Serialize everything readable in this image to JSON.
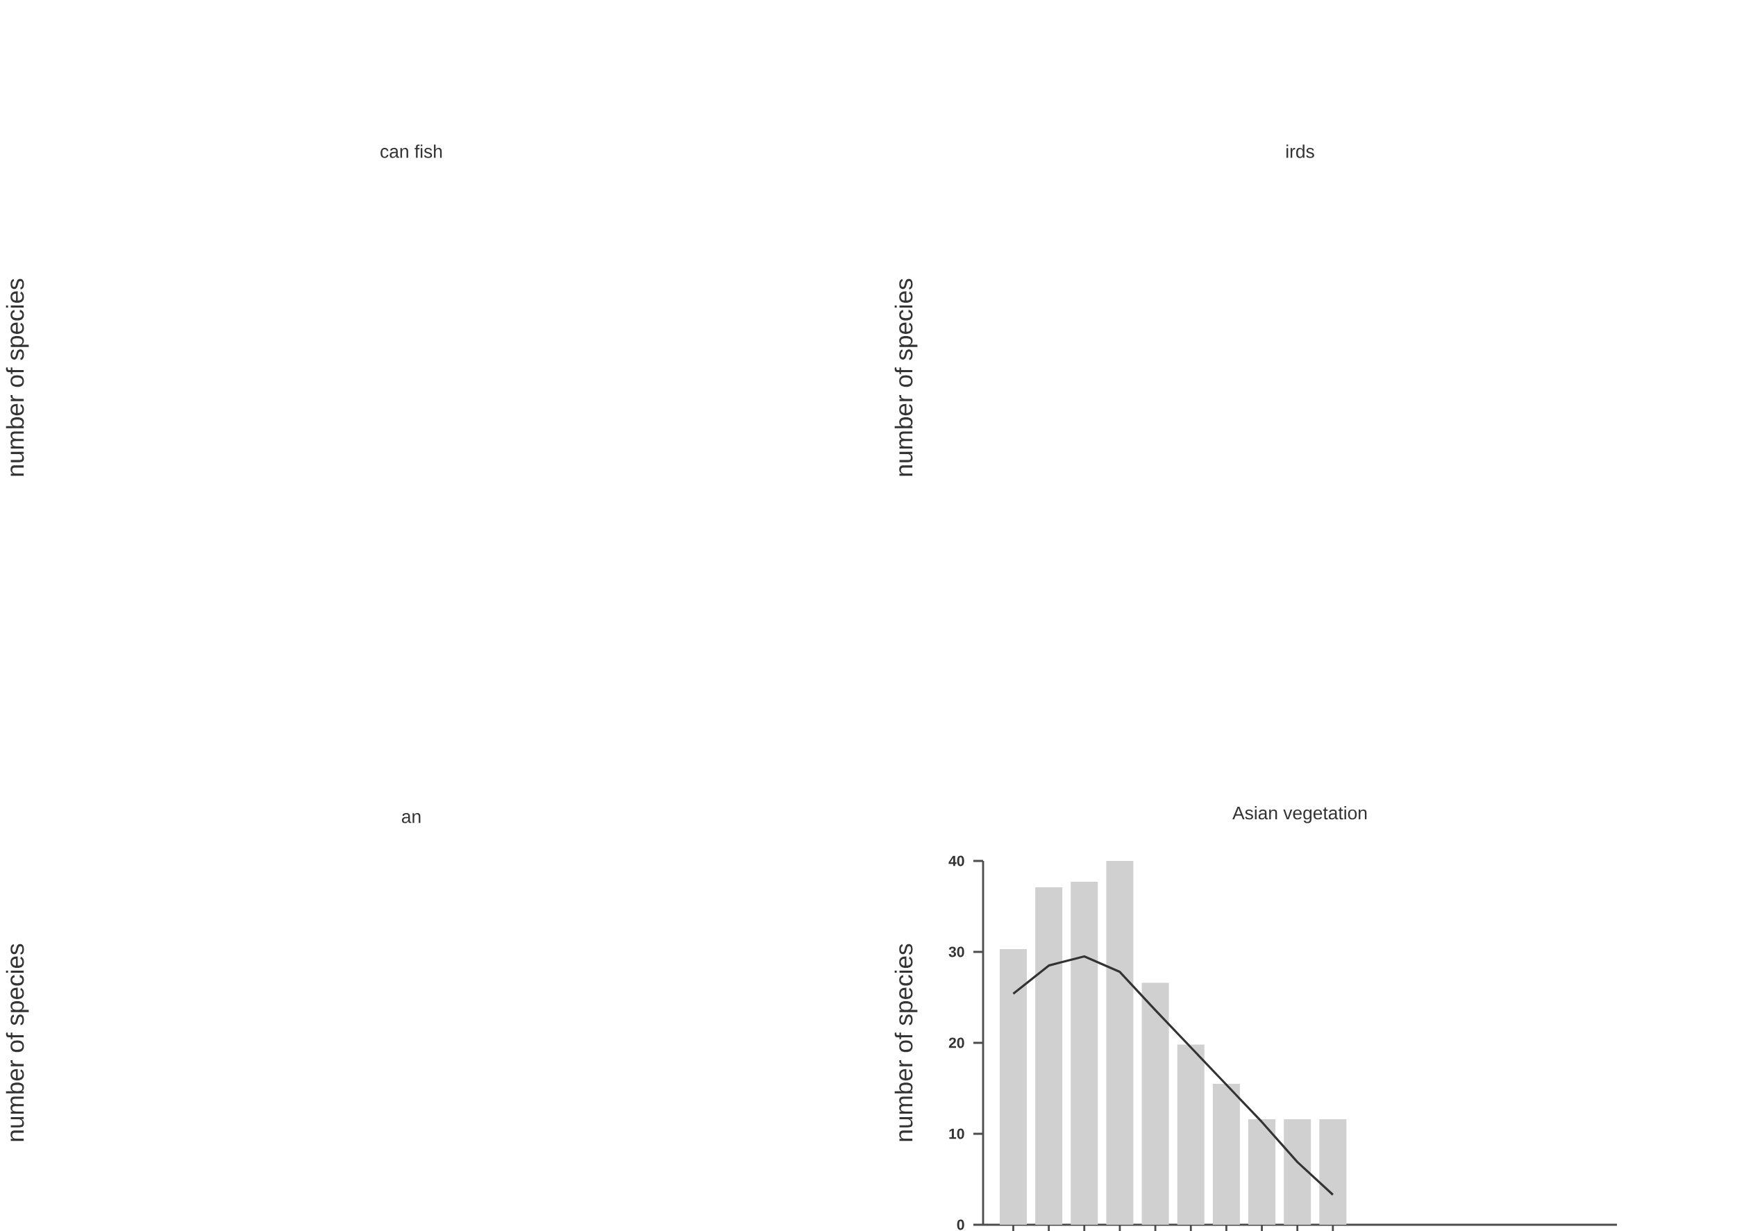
{
  "chart_data": [
    {
      "type": "other",
      "title": "can fish",
      "ylabel": "number of species"
    },
    {
      "type": "other",
      "title": "irds",
      "ylabel": "number of species"
    },
    {
      "type": "other",
      "title": "an",
      "ylabel": "number of species"
    },
    {
      "type": "bar",
      "title": "Asian vegetation",
      "ylabel": "number of species",
      "categories": [
        null,
        null,
        null,
        null,
        null,
        null,
        null,
        null,
        null,
        null
      ],
      "ylim": [
        0,
        40
      ],
      "yticks": [
        0,
        10,
        20,
        30,
        40
      ],
      "tick_labels": "y",
      "series": [
        {
          "type": "bar",
          "color": "#d0d0d0",
          "values": [
            30.3,
            37.1,
            37.7,
            40,
            26.6,
            19.8,
            15.5,
            11.6,
            11.6,
            11.6
          ]
        },
        {
          "type": "line",
          "color": "#333333",
          "values": [
            25.4,
            28.5,
            29.5,
            27.8,
            23.6,
            19.5,
            15.4,
            11.3,
            6.9,
            3.3
          ]
        }
      ]
    }
  ]
}
